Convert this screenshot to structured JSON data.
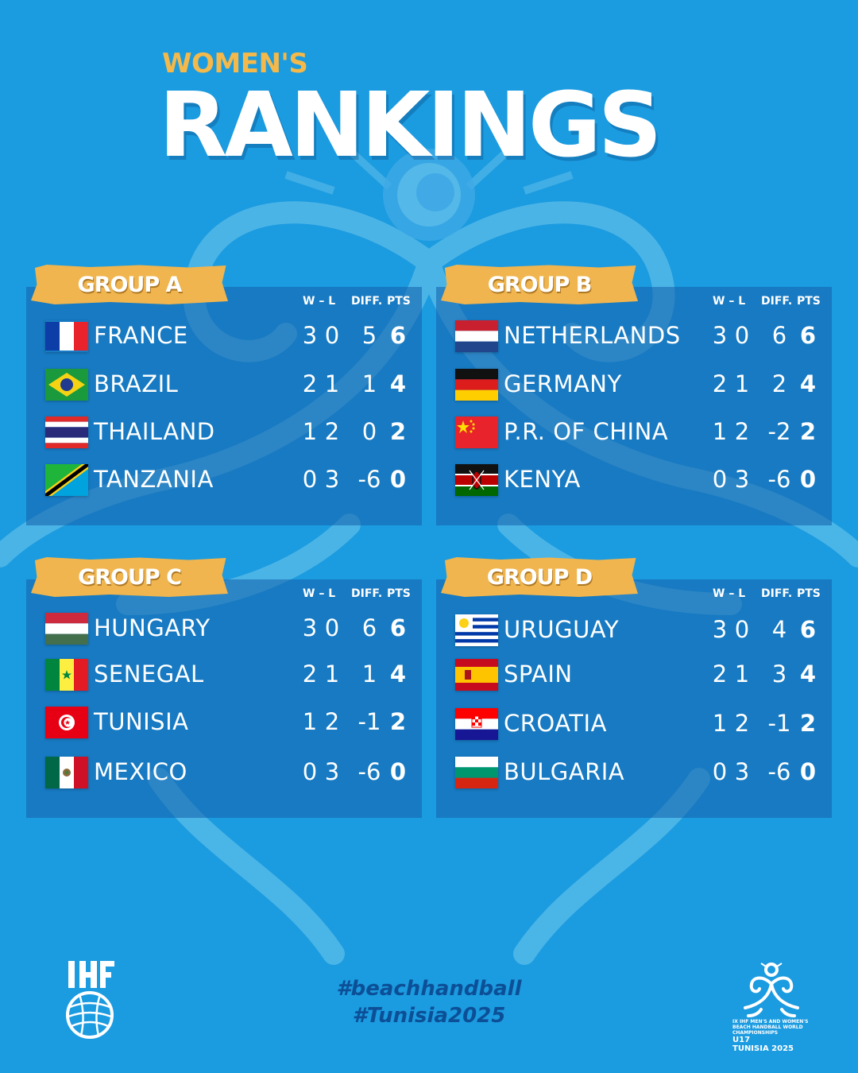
{
  "header": {
    "subtitle": "WOMEN'S",
    "title": "RANKINGS"
  },
  "columns": {
    "wl": "W – L",
    "diff": "DIFF.",
    "pts": "PTS"
  },
  "groups": [
    {
      "label": "GROUP A",
      "teams": [
        {
          "country": "FRANCE",
          "flag": "france-flag-icon",
          "w": "3",
          "l": "0",
          "diff": "5",
          "pts": "6"
        },
        {
          "country": "BRAZIL",
          "flag": "brazil-flag-icon",
          "w": "2",
          "l": "1",
          "diff": "1",
          "pts": "4"
        },
        {
          "country": "THAILAND",
          "flag": "thailand-flag-icon",
          "w": "1",
          "l": "2",
          "diff": "0",
          "pts": "2"
        },
        {
          "country": "TANZANIA",
          "flag": "tanzania-flag-icon",
          "w": "0",
          "l": "3",
          "diff": "-6",
          "pts": "0"
        }
      ]
    },
    {
      "label": "GROUP B",
      "teams": [
        {
          "country": "NETHERLANDS",
          "flag": "netherlands-flag-icon",
          "w": "3",
          "l": "0",
          "diff": "6",
          "pts": "6"
        },
        {
          "country": "GERMANY",
          "flag": "germany-flag-icon",
          "w": "2",
          "l": "1",
          "diff": "2",
          "pts": "4"
        },
        {
          "country": "P.R. OF CHINA",
          "flag": "china-flag-icon",
          "w": "1",
          "l": "2",
          "diff": "-2",
          "pts": "2"
        },
        {
          "country": "KENYA",
          "flag": "kenya-flag-icon",
          "w": "0",
          "l": "3",
          "diff": "-6",
          "pts": "0"
        }
      ]
    },
    {
      "label": "GROUP C",
      "teams": [
        {
          "country": "HUNGARY",
          "flag": "hungary-flag-icon",
          "w": "3",
          "l": "0",
          "diff": "6",
          "pts": "6"
        },
        {
          "country": "SENEGAL",
          "flag": "senegal-flag-icon",
          "w": "2",
          "l": "1",
          "diff": "1",
          "pts": "4"
        },
        {
          "country": "TUNISIA",
          "flag": "tunisia-flag-icon",
          "w": "1",
          "l": "2",
          "diff": "-1",
          "pts": "2"
        },
        {
          "country": "MEXICO",
          "flag": "mexico-flag-icon",
          "w": "0",
          "l": "3",
          "diff": "-6",
          "pts": "0"
        }
      ]
    },
    {
      "label": "GROUP D",
      "teams": [
        {
          "country": "URUGUAY",
          "flag": "uruguay-flag-icon",
          "w": "3",
          "l": "0",
          "diff": "4",
          "pts": "6"
        },
        {
          "country": "SPAIN",
          "flag": "spain-flag-icon",
          "w": "2",
          "l": "1",
          "diff": "3",
          "pts": "4"
        },
        {
          "country": "CROATIA",
          "flag": "croatia-flag-icon",
          "w": "1",
          "l": "2",
          "diff": "-1",
          "pts": "2"
        },
        {
          "country": "BULGARIA",
          "flag": "bulgaria-flag-icon",
          "w": "0",
          "l": "3",
          "diff": "-6",
          "pts": "0"
        }
      ]
    }
  ],
  "footer": {
    "hashtag1": "#beachhandball",
    "hashtag2": "#Tunisia2025",
    "ihf_logo": "ihf-logo-icon",
    "event_logo": "u17-beach-handball-tunisia-2025-logo",
    "event_line1": "IX IHF MEN'S AND WOMEN'S",
    "event_line2": "BEACH HANDBALL WORLD",
    "event_line3": "CHAMPIONSHIPS",
    "event_u17": "U17",
    "event_place": "TUNISIA 2025"
  },
  "colors": {
    "background": "#1b9be0",
    "panel": "#145faa",
    "accent_gold": "#f0b54e",
    "hashtag": "#0c4f96"
  }
}
